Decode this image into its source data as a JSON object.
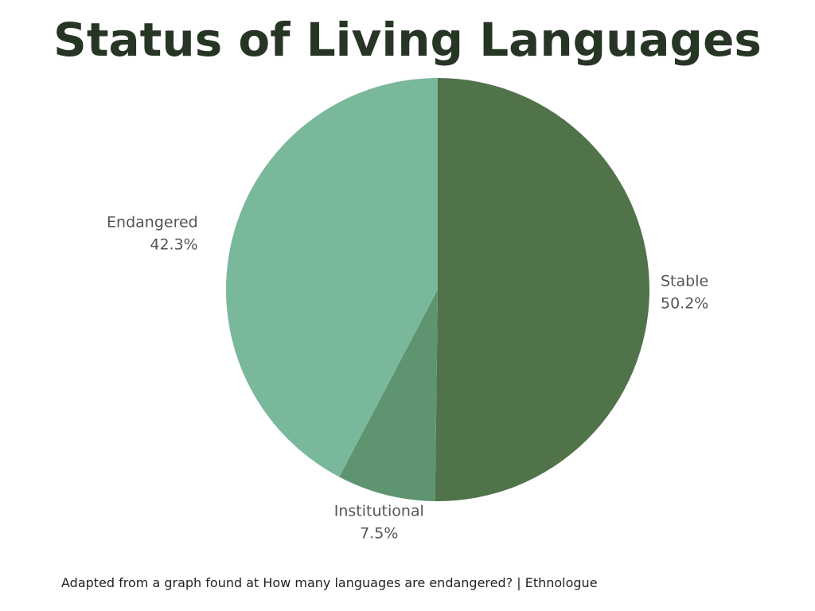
{
  "chart_data": {
    "type": "pie",
    "title": "Status of Living Languages",
    "categories": [
      "Stable",
      "Institutional",
      "Endangered"
    ],
    "values": [
      50.2,
      7.5,
      42.3
    ],
    "value_labels": [
      "50.2%",
      "7.5%",
      "42.3%"
    ],
    "colors": [
      "#50734a",
      "#5f9470",
      "#7ab89c"
    ],
    "source": "Adapted from a graph found at How many languages are endangered? | Ethnologue"
  }
}
